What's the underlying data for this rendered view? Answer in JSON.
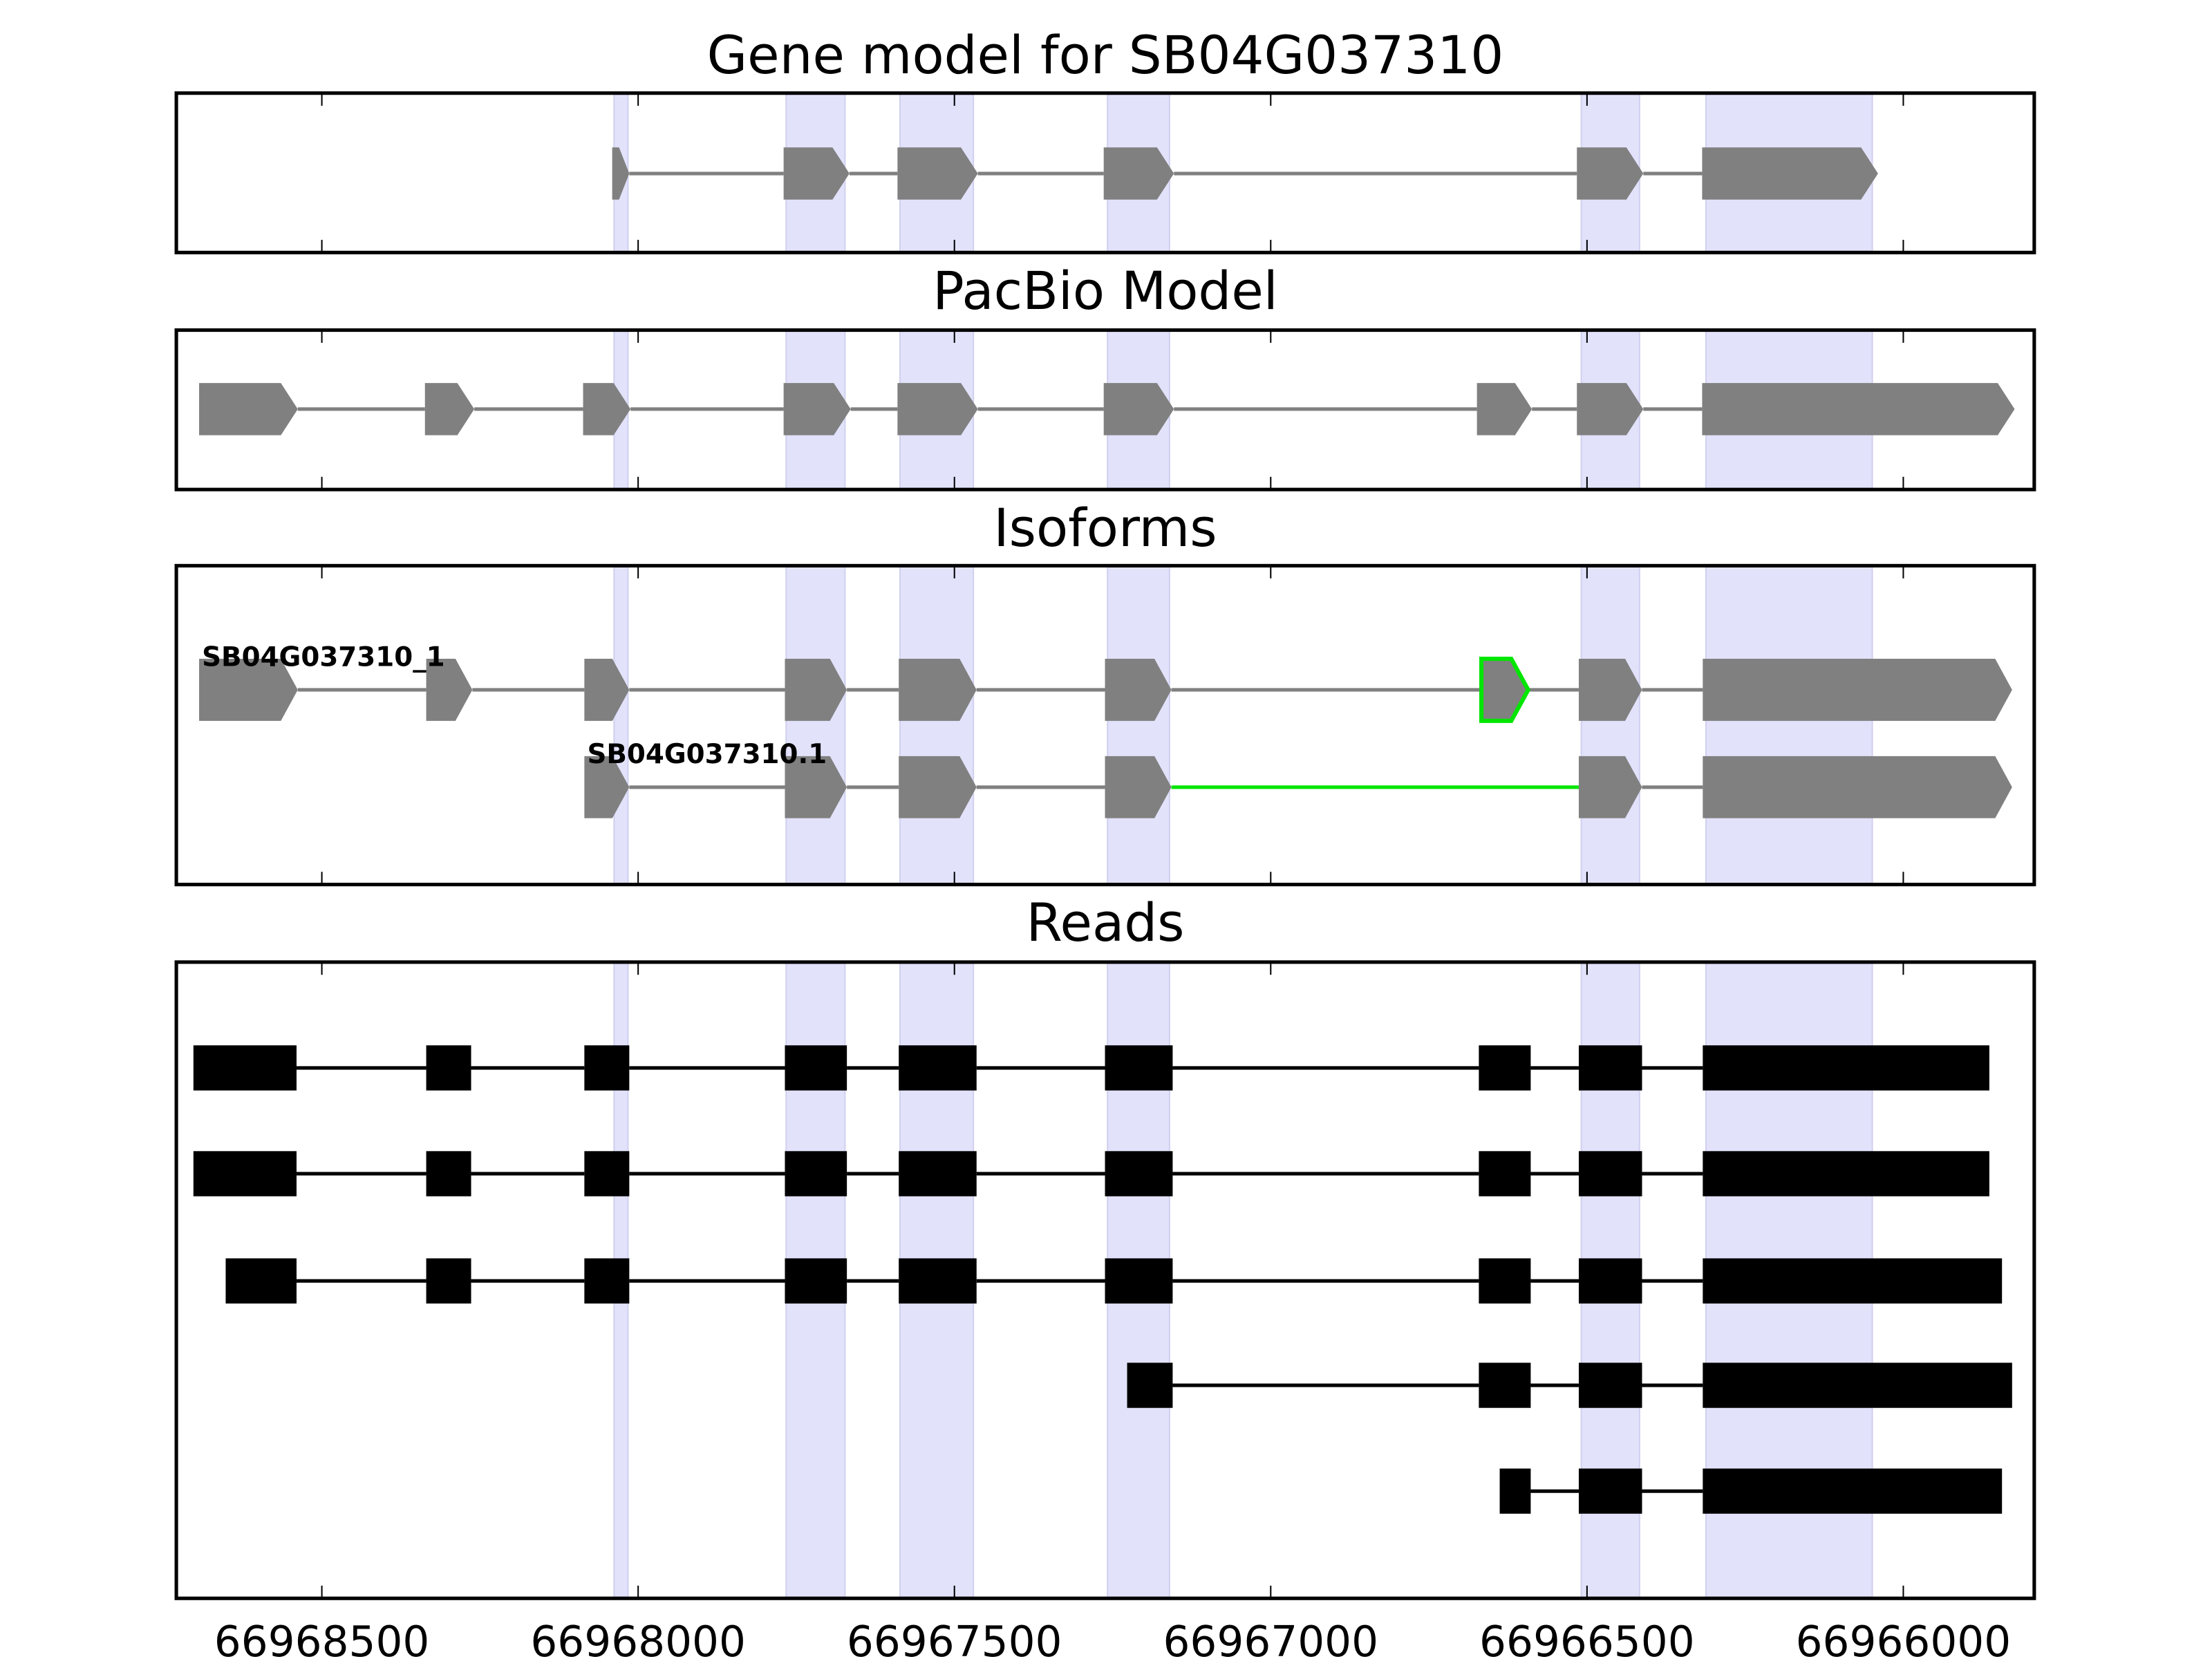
{
  "chart_data": {
    "type": "gene-track",
    "xlim": [
      66968730,
      66965793
    ],
    "x_reversed": true,
    "xticks": [
      66968500,
      66968000,
      66967500,
      66967000,
      66966500,
      66966000
    ],
    "xtick_labels": [
      "66968500",
      "66968000",
      "66967500",
      "66967000",
      "66966500",
      "66966000"
    ],
    "colors": {
      "exon": "#808080",
      "intron": "#808080",
      "highlight": "#00e600",
      "read": "#000000",
      "band": "#e2e2fb"
    },
    "shaded_regions": [
      [
        66968038,
        66968016
      ],
      [
        66967766,
        66967673
      ],
      [
        66967586,
        66967470
      ],
      [
        66967258,
        66967160
      ],
      [
        66966509,
        66966417
      ],
      [
        66966312,
        66966049
      ]
    ],
    "panels": [
      {
        "title": "Gene model for SB04G037310",
        "kind": "model",
        "tracks": [
          {
            "label": "",
            "exons": [
              [
                66968041,
                66968014
              ],
              [
                66967770,
                66967666
              ],
              [
                66967590,
                66967463
              ],
              [
                66967264,
                66967153
              ],
              [
                66966516,
                66966411
              ],
              [
                66966318,
                66966040
              ]
            ]
          }
        ]
      },
      {
        "title": "PacBio Model",
        "kind": "model",
        "tracks": [
          {
            "label": "",
            "exons": [
              [
                66968694,
                66968538
              ],
              [
                66968337,
                66968259
              ],
              [
                66968087,
                66968012
              ],
              [
                66967770,
                66967664
              ],
              [
                66967590,
                66967463
              ],
              [
                66967264,
                66967153
              ],
              [
                66966674,
                66966587
              ],
              [
                66966516,
                66966411
              ],
              [
                66966318,
                66965824
              ]
            ]
          }
        ]
      },
      {
        "title": "Isoforms",
        "kind": "model",
        "tracks": [
          {
            "label": "SB04G037310_1",
            "exons": [
              [
                66968694,
                66968538
              ],
              [
                66968335,
                66968262
              ],
              [
                66968085,
                66968014
              ],
              [
                66967768,
                66967670
              ],
              [
                66967588,
                66967465
              ],
              [
                66967262,
                66967157
              ],
              [
                66966667,
                66966593
              ],
              [
                66966513,
                66966413
              ],
              [
                66966317,
                66965828
              ]
            ],
            "highlight_exons": [
              6
            ],
            "highlight_introns": []
          },
          {
            "label": "SB04G037310.1",
            "exons": [
              [
                66968085,
                66968014
              ],
              [
                66967768,
                66967670
              ],
              [
                66967588,
                66967465
              ],
              [
                66967262,
                66967157
              ],
              [
                66966513,
                66966413
              ],
              [
                66966317,
                66965828
              ]
            ],
            "highlight_exons": [],
            "highlight_introns": [
              3
            ]
          }
        ]
      },
      {
        "title": "Reads",
        "kind": "reads",
        "tracks": [
          {
            "exons": [
              [
                66968703,
                66968540
              ],
              [
                66968335,
                66968264
              ],
              [
                66968085,
                66968014
              ],
              [
                66967768,
                66967670
              ],
              [
                66967588,
                66967465
              ],
              [
                66967262,
                66967155
              ],
              [
                66966671,
                66966589
              ],
              [
                66966513,
                66966413
              ],
              [
                66966317,
                66965864
              ]
            ]
          },
          {
            "exons": [
              [
                66968703,
                66968540
              ],
              [
                66968335,
                66968264
              ],
              [
                66968085,
                66968014
              ],
              [
                66967768,
                66967670
              ],
              [
                66967588,
                66967465
              ],
              [
                66967262,
                66967155
              ],
              [
                66966671,
                66966589
              ],
              [
                66966513,
                66966413
              ],
              [
                66966317,
                66965864
              ]
            ]
          },
          {
            "exons": [
              [
                66968652,
                66968540
              ],
              [
                66968335,
                66968264
              ],
              [
                66968085,
                66968014
              ],
              [
                66967768,
                66967670
              ],
              [
                66967588,
                66967465
              ],
              [
                66967262,
                66967155
              ],
              [
                66966671,
                66966589
              ],
              [
                66966513,
                66966413
              ],
              [
                66966317,
                66965844
              ]
            ]
          },
          {
            "exons": [
              [
                66967227,
                66967155
              ],
              [
                66966671,
                66966589
              ],
              [
                66966513,
                66966413
              ],
              [
                66966317,
                66965828
              ]
            ]
          },
          {
            "exons": [
              [
                66966638,
                66966589
              ],
              [
                66966513,
                66966413
              ],
              [
                66966317,
                66965844
              ]
            ]
          }
        ]
      }
    ]
  }
}
